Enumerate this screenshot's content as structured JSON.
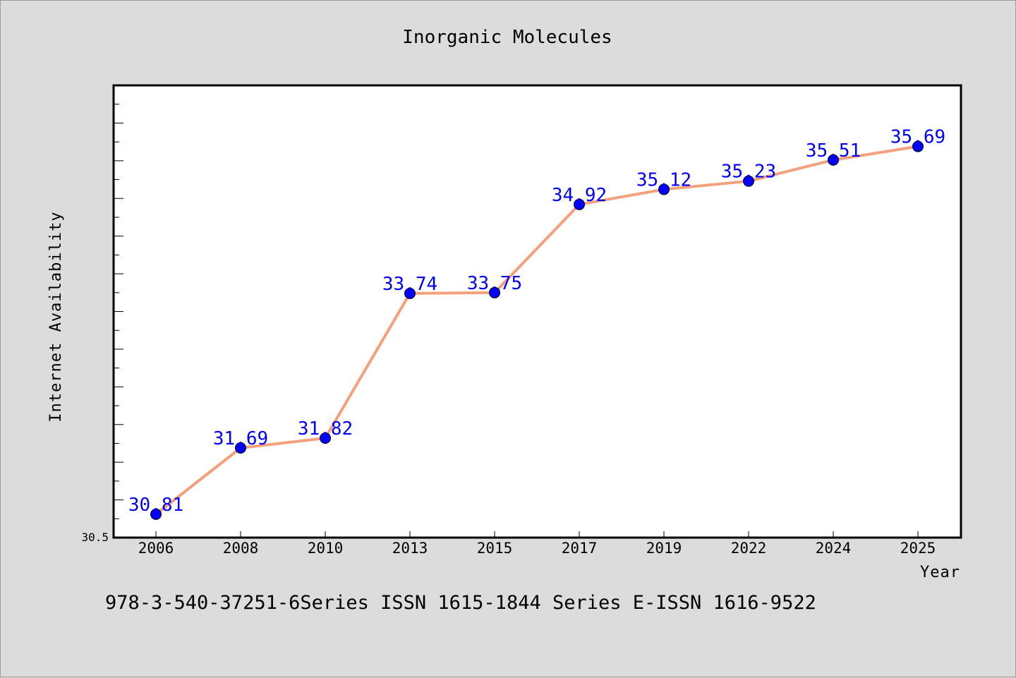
{
  "chart_data": {
    "type": "line",
    "title": "Inorganic Molecules",
    "xlabel": "Year",
    "ylabel": "Internet Availability",
    "categories": [
      "2006",
      "2008",
      "2010",
      "2013",
      "2015",
      "2017",
      "2019",
      "2022",
      "2024",
      "2025"
    ],
    "series": [
      {
        "values": [
          30.81,
          31.69,
          31.82,
          33.74,
          33.75,
          34.92,
          35.12,
          35.23,
          35.51,
          35.69
        ],
        "labels": [
          "30.81",
          "31.69",
          "31.82",
          "33.74",
          "33.75",
          "34.92",
          "35.12",
          "35.23",
          "35.51",
          "35.69"
        ],
        "line_color": "#f4a07a",
        "marker_color": "#0000ff"
      }
    ],
    "ylim": [
      30.5,
      36.5
    ],
    "yticks_labeled": [
      "30.5"
    ],
    "grid": false,
    "legend": "none"
  },
  "footer_text": "978-3-540-37251-6Series ISSN 1615-1844 Series E-ISSN 1616-9522"
}
